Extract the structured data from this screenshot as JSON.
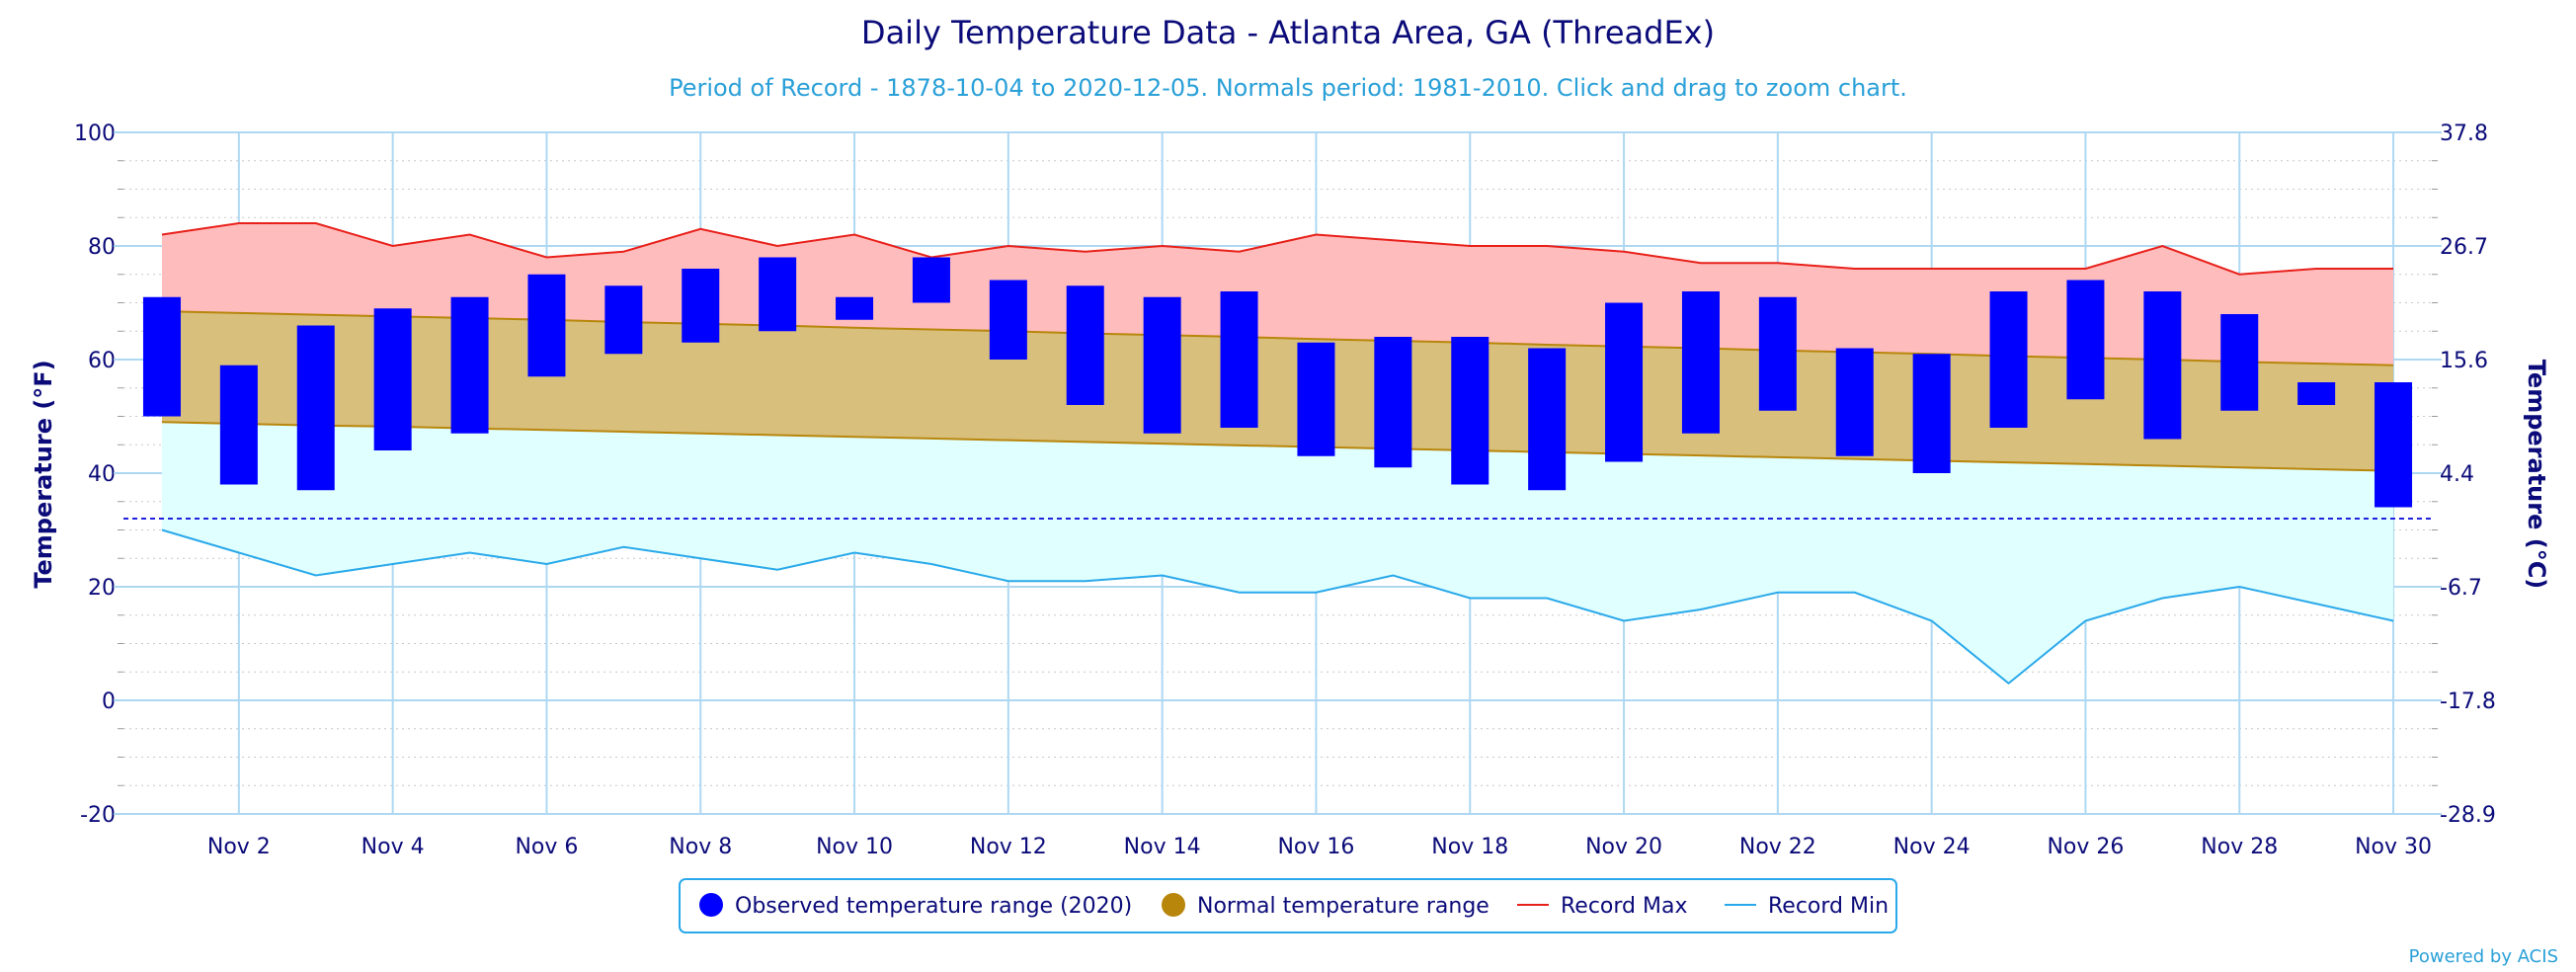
{
  "colors": {
    "observed": "#0000ff",
    "normal_fill": "#d8bf7c",
    "normal_line": "#b8860b",
    "record_max": "#e8201a",
    "record_max_fill": "#ffbcbc",
    "record_min": "#2aa9ea",
    "record_min_fill": "#e0ffff",
    "freezing": "#2222dd",
    "grid": "#aed8f2",
    "text": "#0b0b7a",
    "subtitle": "#2aa0d8"
  },
  "credit": "Powered by ACIS",
  "legend": {
    "observed": "Observed temperature range (2020)",
    "normal": "Normal temperature range",
    "record_max": "Record Max",
    "record_min": "Record Min"
  },
  "chart_data": {
    "type": "bar",
    "title": "Daily Temperature Data - Atlanta Area, GA (ThreadEx)",
    "subtitle": "Period of Record - 1878-10-04 to 2020-12-05. Normals period: 1981-2010. Click and drag to zoom chart.",
    "ylabel": "Temperature (°F)",
    "ylabel_right": "Temperature (°C)",
    "ylim": [
      -20,
      100
    ],
    "y_ticks": [
      "100",
      "80",
      "60",
      "40",
      "20",
      "0",
      "-20"
    ],
    "y_ticks_right": [
      "37.8",
      "26.7",
      "15.6",
      "4.4",
      "-6.7",
      "-17.8",
      "-28.9"
    ],
    "x_tick_labels": [
      "Nov 2",
      "Nov 4",
      "Nov 6",
      "Nov 8",
      "Nov 10",
      "Nov 12",
      "Nov 14",
      "Nov 16",
      "Nov 18",
      "Nov 20",
      "Nov 22",
      "Nov 24",
      "Nov 26",
      "Nov 28",
      "Nov 30"
    ],
    "days": [
      1,
      2,
      3,
      4,
      5,
      6,
      7,
      8,
      9,
      10,
      11,
      12,
      13,
      14,
      15,
      16,
      17,
      18,
      19,
      20,
      21,
      22,
      23,
      24,
      25,
      26,
      27,
      28,
      29,
      30
    ],
    "freezing_line": 32,
    "grid": true,
    "legend_position": "bottom",
    "series": [
      {
        "name": "Observed temperature range (2020)",
        "low": [
          50,
          38,
          37,
          44,
          47,
          57,
          61,
          63,
          65,
          67,
          70,
          60,
          52,
          47,
          48,
          43,
          41,
          38,
          37,
          42,
          47,
          51,
          43,
          40,
          48,
          53,
          46,
          51,
          52,
          34
        ],
        "high": [
          71,
          59,
          66,
          69,
          71,
          75,
          73,
          76,
          78,
          71,
          78,
          74,
          73,
          71,
          72,
          63,
          64,
          64,
          62,
          70,
          72,
          71,
          62,
          61,
          72,
          74,
          72,
          68,
          56,
          56
        ]
      },
      {
        "name": "Normal temperature range",
        "low": [
          49,
          48.7,
          48.4,
          48.2,
          47.9,
          47.6,
          47.3,
          47,
          46.7,
          46.4,
          46.1,
          45.8,
          45.5,
          45.2,
          44.9,
          44.6,
          44.3,
          44,
          43.7,
          43.4,
          43.1,
          42.8,
          42.5,
          42.2,
          41.9,
          41.6,
          41.3,
          41,
          40.7,
          40.4
        ],
        "high": [
          68.5,
          68.2,
          67.9,
          67.6,
          67.3,
          67,
          66.6,
          66.3,
          66,
          65.6,
          65.3,
          65,
          64.6,
          64.3,
          64,
          63.6,
          63.3,
          63,
          62.6,
          62.3,
          62,
          61.6,
          61.3,
          61,
          60.6,
          60.3,
          60,
          59.6,
          59.3,
          59
        ]
      },
      {
        "name": "Record Max",
        "values": [
          82,
          84,
          84,
          80,
          82,
          78,
          79,
          83,
          80,
          82,
          78,
          80,
          79,
          80,
          79,
          82,
          81,
          80,
          80,
          79,
          77,
          77,
          76,
          76,
          76,
          76,
          80,
          75,
          76,
          76
        ]
      },
      {
        "name": "Record Min",
        "values": [
          30,
          26,
          22,
          24,
          26,
          24,
          27,
          25,
          23,
          26,
          24,
          21,
          21,
          22,
          19,
          19,
          22,
          18,
          18,
          14,
          16,
          19,
          19,
          14,
          3,
          14,
          18,
          20,
          17,
          14
        ]
      }
    ]
  }
}
